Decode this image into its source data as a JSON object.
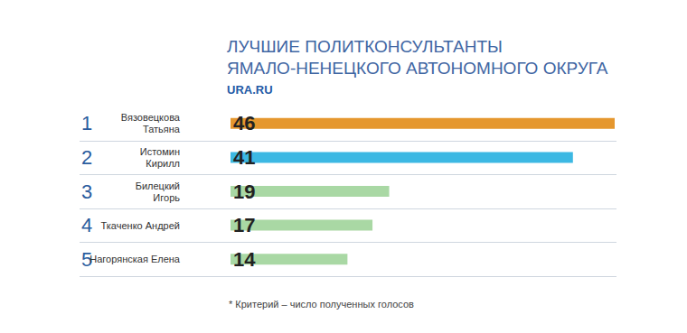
{
  "chart_data": {
    "type": "bar",
    "orientation": "horizontal",
    "title": "ЛУЧШИЕ ПОЛИТКОНСУЛЬТАНТЫ\nЯМАЛО-НЕНЕЦКОГО АВТОНОМНОГО ОКРУГА",
    "subtitle": "URA.RU",
    "footnote": "* Критерий – число полученных голосов",
    "ranks": [
      1,
      2,
      3,
      4,
      5
    ],
    "categories": [
      "Вязовецкова\nТатьяна",
      "Истомин\nКирилл",
      "Билецкий\nИгорь",
      "Ткаченко Андрей",
      "Нагорянская Елена"
    ],
    "values": [
      46,
      41,
      19,
      17,
      14
    ],
    "colors": [
      "#e5972e",
      "#3cb8e3",
      "#a9d8a4",
      "#a9d8a4",
      "#a9d8a4"
    ],
    "xlim": [
      0,
      46
    ],
    "data_labels": true,
    "tick_labels": false,
    "grid": false
  }
}
